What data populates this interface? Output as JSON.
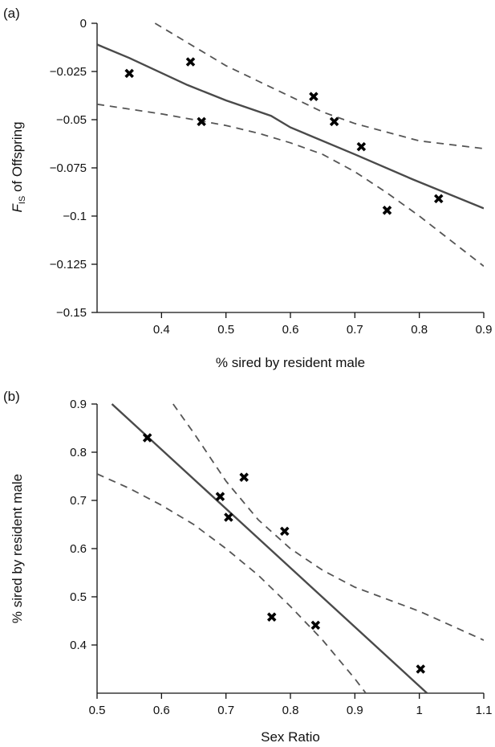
{
  "chart_data": [
    {
      "type": "scatter",
      "panel_label": "(a)",
      "xlabel": "% sired by resident male",
      "ylabel_main": "F",
      "ylabel_sub": "IS",
      "ylabel_rest": " of Offspring",
      "xlim": [
        0.3,
        0.9
      ],
      "ylim": [
        -0.15,
        0
      ],
      "xticks": [
        0.4,
        0.5,
        0.6,
        0.7,
        0.8,
        0.9
      ],
      "xtick_labels": [
        "0.4",
        "0.5",
        "0.6",
        "0.7",
        "0.8",
        "0.9"
      ],
      "yticks": [
        0,
        -0.025,
        -0.05,
        -0.075,
        -0.1,
        -0.125,
        -0.15
      ],
      "ytick_labels": [
        "0",
        "−0.025",
        "−0.05",
        "−0.075",
        "−0.1",
        "−0.125",
        "−0.15"
      ],
      "points": {
        "x": [
          0.35,
          0.445,
          0.462,
          0.636,
          0.668,
          0.71,
          0.75,
          0.83
        ],
        "y": [
          -0.026,
          -0.02,
          -0.051,
          -0.038,
          -0.051,
          -0.064,
          -0.097,
          -0.091
        ]
      },
      "fit": {
        "x": [
          0.3,
          0.9
        ],
        "y": [
          -0.011,
          -0.096
        ]
      },
      "fit_curve": {
        "x": [
          0.3,
          0.35,
          0.44,
          0.5,
          0.57,
          0.6,
          0.7,
          0.79,
          0.9
        ],
        "y": [
          -0.011,
          -0.018,
          -0.032,
          -0.04,
          -0.048,
          -0.054,
          -0.068,
          -0.081,
          -0.096
        ]
      },
      "ci_upper": {
        "x": [
          0.39,
          0.45,
          0.5,
          0.55,
          0.6,
          0.65,
          0.7,
          0.8,
          0.9
        ],
        "y": [
          0.0,
          -0.012,
          -0.022,
          -0.03,
          -0.038,
          -0.046,
          -0.052,
          -0.061,
          -0.065
        ]
      },
      "ci_lower": {
        "x": [
          0.3,
          0.4,
          0.5,
          0.55,
          0.6,
          0.65,
          0.7,
          0.75,
          0.8,
          0.85,
          0.9
        ],
        "y": [
          -0.042,
          -0.047,
          -0.053,
          -0.057,
          -0.062,
          -0.068,
          -0.077,
          -0.088,
          -0.1,
          -0.113,
          -0.126
        ]
      },
      "grid": false
    },
    {
      "type": "scatter",
      "panel_label": "(b)",
      "xlabel": "Sex Ratio",
      "ylabel": "% sired by resident male",
      "xlim": [
        0.5,
        1.1
      ],
      "ylim": [
        0.3,
        0.9
      ],
      "xticks": [
        0.5,
        0.6,
        0.7,
        0.8,
        0.9,
        1.0,
        1.1
      ],
      "xtick_labels": [
        "0.5",
        "0.6",
        "0.7",
        "0.8",
        "0.9",
        "1",
        "1.1"
      ],
      "yticks": [
        0.4,
        0.5,
        0.6,
        0.7,
        0.8,
        0.9
      ],
      "ytick_labels": [
        "0.4",
        "0.5",
        "0.6",
        "0.7",
        "0.8",
        "0.9"
      ],
      "points": {
        "x": [
          0.578,
          0.691,
          0.704,
          0.728,
          0.791,
          0.771,
          0.839,
          1.002
        ],
        "y": [
          0.83,
          0.708,
          0.665,
          0.748,
          0.636,
          0.458,
          0.441,
          0.35
        ]
      },
      "fit": {
        "x": [
          0.523,
          1.012
        ],
        "y": [
          0.9,
          0.3
        ]
      },
      "ci_upper": {
        "x": [
          0.618,
          0.65,
          0.7,
          0.75,
          0.8,
          0.85,
          0.9,
          1.0,
          1.1
        ],
        "y": [
          0.9,
          0.84,
          0.74,
          0.66,
          0.6,
          0.555,
          0.52,
          0.47,
          0.41
        ]
      },
      "ci_lower": {
        "x": [
          0.5,
          0.55,
          0.6,
          0.65,
          0.7,
          0.75,
          0.8,
          0.85,
          0.9,
          0.917
        ],
        "y": [
          0.755,
          0.725,
          0.69,
          0.65,
          0.6,
          0.545,
          0.48,
          0.41,
          0.33,
          0.3
        ]
      },
      "grid": false
    }
  ]
}
